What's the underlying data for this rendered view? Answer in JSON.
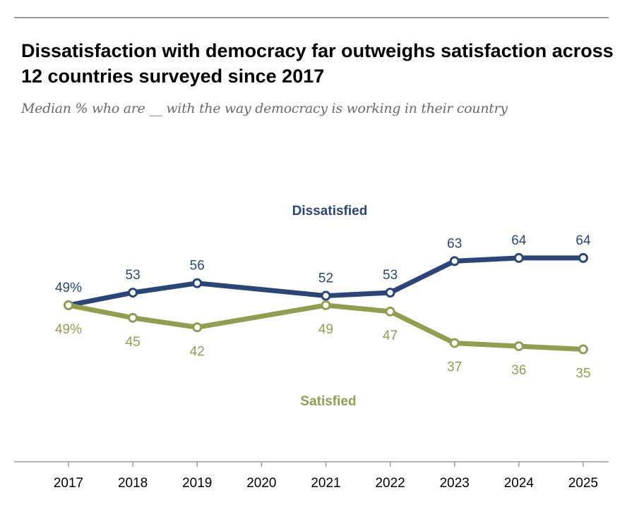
{
  "title": "Dissatisfaction with democracy far outweighs satisfaction across 12 countries surveyed since 2017",
  "subtitle": "Median % who are __ with the way democracy is working in their country",
  "chart_data": {
    "type": "line",
    "x": [
      "2017",
      "2018",
      "2019",
      "2020",
      "2021",
      "2022",
      "2023",
      "2024",
      "2025"
    ],
    "ylim": [
      0,
      70
    ],
    "grid": false,
    "series": [
      {
        "name": "Dissatisfied",
        "color": "#2a4677",
        "values": [
          49,
          53,
          56,
          null,
          52,
          53,
          63,
          64,
          64
        ],
        "labels": [
          "49%",
          "53",
          "56",
          "",
          "52",
          "53",
          "63",
          "64",
          "64"
        ]
      },
      {
        "name": "Satisfied",
        "color": "#949c4f",
        "values": [
          49,
          45,
          42,
          null,
          49,
          47,
          37,
          36,
          35
        ],
        "labels": [
          "49%",
          "45",
          "42",
          "",
          "49",
          "47",
          "37",
          "36",
          "35"
        ]
      }
    ]
  }
}
